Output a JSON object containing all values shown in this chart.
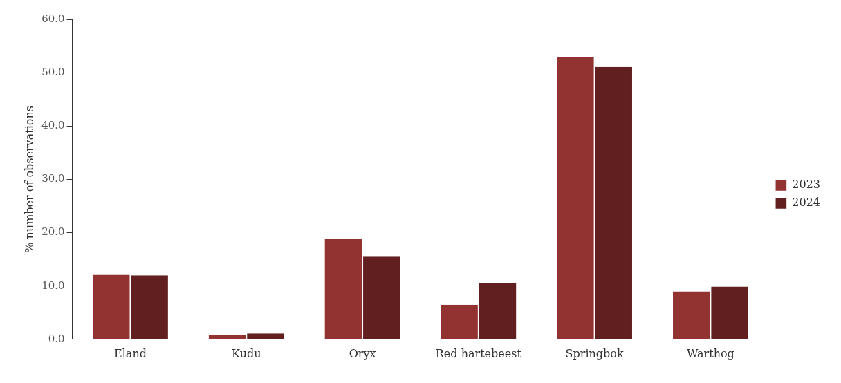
{
  "chart_data": {
    "type": "bar",
    "ylabel": "% number of observations",
    "categories": [
      "Eland",
      "Kudu",
      "Oryx",
      "Red hartebeest",
      "Springbok",
      "Warthog"
    ],
    "series": [
      {
        "name": "2023",
        "color": "#923331",
        "values": [
          12.1,
          0.8,
          18.9,
          6.5,
          53.0,
          9.0
        ]
      },
      {
        "name": "2024",
        "color": "#621f20",
        "values": [
          12.0,
          1.1,
          15.5,
          10.6,
          51.1,
          9.9
        ]
      }
    ],
    "ylim": [
      0,
      60
    ],
    "yticks": [
      {
        "value": 0,
        "label": "0.0"
      },
      {
        "value": 10,
        "label": "10.0"
      },
      {
        "value": 20,
        "label": "20.0"
      },
      {
        "value": 30,
        "label": "30.0"
      },
      {
        "value": 40,
        "label": "40.0"
      },
      {
        "value": 50,
        "label": "50.0"
      },
      {
        "value": 60,
        "label": "60.0"
      }
    ],
    "grid": false,
    "legend": "right"
  }
}
